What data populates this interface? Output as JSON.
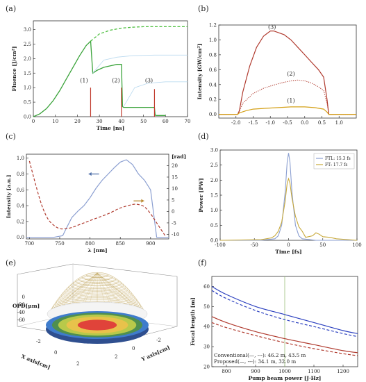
{
  "panels": {
    "a": "(a)",
    "b": "(b)",
    "c": "(c)",
    "d": "(d)",
    "e": "(e)",
    "f": "(f)"
  },
  "chart_data": [
    {
      "id": "a",
      "type": "line",
      "xlabel": "Time [ns]",
      "ylabel": "Fluence [J/cm²]",
      "xlim": [
        0,
        70
      ],
      "ylim": [
        0,
        3.3
      ],
      "xticks": [
        0,
        10,
        20,
        30,
        40,
        50,
        60,
        70
      ],
      "yticks": [
        0.0,
        0.5,
        1.0,
        1.5,
        2.0,
        2.5,
        3.0
      ],
      "ytick_labels": [
        "0.0",
        "0.5",
        "1.0",
        "1.5",
        "2.0",
        "2.5",
        "3.0"
      ],
      "colors": {
        "solid": "#3aa33a",
        "dashed": "#4dbf3f",
        "pulse": "#c0392b"
      },
      "series": [
        {
          "style": "solid",
          "x": [
            0,
            3,
            6,
            9,
            12,
            15,
            18,
            21,
            24,
            26,
            27,
            29,
            32,
            35,
            38,
            40,
            40.5,
            41,
            43,
            46,
            50,
            54,
            55,
            55.3,
            56,
            60
          ],
          "y": [
            0,
            0.1,
            0.28,
            0.55,
            0.9,
            1.3,
            1.7,
            2.1,
            2.45,
            2.6,
            1.5,
            1.6,
            1.7,
            1.75,
            1.8,
            1.8,
            0.35,
            0.32,
            0.32,
            0.32,
            0.32,
            0.32,
            0.32,
            0.05,
            0.04,
            0.04
          ]
        },
        {
          "style": "dashed",
          "x": [
            26,
            30,
            35,
            40,
            45,
            50,
            55,
            60,
            65,
            70
          ],
          "y": [
            2.6,
            2.85,
            2.98,
            3.05,
            3.08,
            3.1,
            3.1,
            3.1,
            3.1,
            3.1
          ]
        },
        {
          "style": "faint",
          "x": [
            27,
            32,
            38,
            45,
            55,
            70
          ],
          "y": [
            1.5,
            1.95,
            2.05,
            2.1,
            2.12,
            2.12
          ]
        },
        {
          "style": "faint",
          "x": [
            41,
            46,
            52,
            60,
            70
          ],
          "y": [
            0.35,
            1.0,
            1.15,
            1.2,
            1.2
          ]
        }
      ],
      "pulses": [
        {
          "x": 26,
          "y": 1.0
        },
        {
          "x": 40,
          "y": 1.0
        },
        {
          "x": 55,
          "y": 0.95
        }
      ],
      "annotations": [
        {
          "text": "(1)",
          "x": 23,
          "y": 1.18
        },
        {
          "text": "(2)",
          "x": 37.5,
          "y": 1.18
        },
        {
          "text": "(3)",
          "x": 52.5,
          "y": 1.18
        }
      ]
    },
    {
      "id": "b",
      "type": "line",
      "xlabel": "",
      "ylabel": "Intensity [GW/cm²]",
      "xlim": [
        -2.5,
        1.5
      ],
      "ylim": [
        -0.05,
        1.2
      ],
      "xticks": [
        -2.0,
        -1.5,
        -1.0,
        -0.5,
        0.0,
        0.5,
        1.0
      ],
      "xtick_labels": [
        "-2.0",
        "-1.5",
        "-1.0",
        "-0.5",
        "0.0",
        "0.5",
        "1.0"
      ],
      "yticks": [
        0.0,
        0.2,
        0.4,
        0.6,
        0.8,
        1.0,
        1.2
      ],
      "ytick_labels": [
        "0.0",
        "0.2",
        "0.4",
        "0.6",
        "0.8",
        "1.0",
        "1.2"
      ],
      "series": [
        {
          "style": "solid",
          "color": "#b03a2e",
          "x": [
            -2.5,
            -1.95,
            -1.9,
            -1.8,
            -1.6,
            -1.4,
            -1.2,
            -1.0,
            -0.9,
            -0.6,
            -0.4,
            -0.2,
            0.0,
            0.2,
            0.4,
            0.55,
            0.65,
            0.7,
            1.5
          ],
          "y": [
            0,
            0,
            0.05,
            0.3,
            0.65,
            0.9,
            1.05,
            1.12,
            1.12,
            1.07,
            1.0,
            0.9,
            0.8,
            0.7,
            0.6,
            0.5,
            0.2,
            0,
            0
          ]
        },
        {
          "style": "dotted",
          "color": "#b03a2e",
          "x": [
            -2.5,
            -1.95,
            -1.9,
            -1.8,
            -1.5,
            -1.2,
            -1.0,
            -0.7,
            -0.4,
            -0.2,
            0.0,
            0.2,
            0.4,
            0.55,
            0.65,
            0.7,
            1.5
          ],
          "y": [
            0,
            0,
            0.04,
            0.15,
            0.28,
            0.35,
            0.38,
            0.42,
            0.45,
            0.46,
            0.45,
            0.42,
            0.37,
            0.32,
            0.15,
            0,
            0
          ]
        },
        {
          "style": "solid",
          "color": "#d4a017",
          "x": [
            -2.5,
            -1.95,
            -1.9,
            -1.7,
            -1.5,
            -1.2,
            -0.8,
            -0.4,
            0.0,
            0.3,
            0.55,
            0.65,
            0.7,
            1.5
          ],
          "y": [
            0,
            0,
            0.02,
            0.05,
            0.07,
            0.08,
            0.09,
            0.1,
            0.1,
            0.09,
            0.07,
            0.03,
            0,
            0
          ]
        }
      ],
      "annotations": [
        {
          "text": "(3)",
          "x": -0.95,
          "y": 1.15
        },
        {
          "text": "(2)",
          "x": -0.4,
          "y": 0.52
        },
        {
          "text": "(1)",
          "x": -0.4,
          "y": 0.16
        }
      ]
    },
    {
      "id": "c",
      "type": "line",
      "xlabel": "λ [nm]",
      "ylabel": "Intensity [a.u.]",
      "y2label": "[rad]",
      "xlim": [
        695,
        930
      ],
      "ylim": [
        -0.02,
        1.05
      ],
      "y2lim": [
        -12,
        25
      ],
      "xticks": [
        700,
        750,
        800,
        850,
        900
      ],
      "yticks": [
        0.0,
        0.2,
        0.4,
        0.6,
        0.8,
        1.0
      ],
      "ytick_labels": [
        "0.0",
        "0.2",
        "0.4",
        "0.6",
        "0.8",
        "1.0"
      ],
      "y2ticks": [
        -10,
        -5,
        0,
        5,
        10,
        15,
        20
      ],
      "series": [
        {
          "style": "solid",
          "color": "#8b9fd1",
          "axis": "y",
          "x": [
            695,
            740,
            755,
            760,
            770,
            780,
            790,
            800,
            810,
            820,
            830,
            840,
            850,
            860,
            870,
            880,
            890,
            900,
            905,
            910,
            930
          ],
          "y": [
            0,
            0,
            0.02,
            0.1,
            0.25,
            0.33,
            0.4,
            0.5,
            0.62,
            0.72,
            0.8,
            0.88,
            0.95,
            0.98,
            0.92,
            0.8,
            0.72,
            0.6,
            0.3,
            0,
            0
          ]
        },
        {
          "style": "dashed",
          "color": "#b03a2e",
          "axis": "y2",
          "x": [
            700,
            710,
            720,
            730,
            740,
            750,
            760,
            770,
            790,
            810,
            830,
            850,
            870,
            880,
            890,
            900,
            910,
            925
          ],
          "y": [
            22,
            12,
            3,
            -3,
            -6,
            -7.5,
            -7.5,
            -7,
            -5,
            -3,
            -1,
            1.5,
            3,
            3,
            2,
            -1,
            -5,
            -11
          ]
        }
      ],
      "arrows": [
        {
          "color": "#4f6fa8",
          "x": 815,
          "y": 0.8,
          "dir": "left"
        },
        {
          "color": "#b8862b",
          "x": 872,
          "y": 0.46,
          "dir": "right"
        }
      ]
    },
    {
      "id": "d",
      "type": "line",
      "xlabel": "Time [fs]",
      "ylabel": "Power [PW]",
      "xlim": [
        -100,
        100
      ],
      "ylim": [
        0,
        3.0
      ],
      "xticks": [
        -100,
        -50,
        0,
        50,
        100
      ],
      "yticks": [
        0.0,
        0.5,
        1.0,
        1.5,
        2.0,
        2.5,
        3.0
      ],
      "ytick_labels": [
        "0.0",
        "0.5",
        "1.0",
        "1.5",
        "2.0",
        "2.5",
        "3.0"
      ],
      "legend": {
        "placement": "top-right",
        "entries": [
          "FTL: 15.3 fs",
          "FT: 17.7 fs"
        ]
      },
      "series": [
        {
          "name": "FTL: 15.3 fs",
          "color": "#8b9fd1",
          "x": [
            -100,
            -40,
            -20,
            -15,
            -10,
            -5,
            -2,
            0,
            2,
            5,
            10,
            15,
            20,
            40,
            100
          ],
          "y": [
            0,
            0,
            0.05,
            0.15,
            0.5,
            1.6,
            2.6,
            2.9,
            2.6,
            1.6,
            0.5,
            0.15,
            0.05,
            0,
            0
          ]
        },
        {
          "name": "FT: 17.7 fs",
          "color": "#c8a93a",
          "x": [
            -100,
            -40,
            -25,
            -20,
            -15,
            -10,
            -5,
            -2,
            0,
            2,
            5,
            10,
            15,
            20,
            25,
            35,
            40,
            45,
            50,
            60,
            70,
            100
          ],
          "y": [
            0,
            0.02,
            0.08,
            0.15,
            0.3,
            0.6,
            1.3,
            1.9,
            2.05,
            1.9,
            1.4,
            0.8,
            0.45,
            0.3,
            0.1,
            0.15,
            0.25,
            0.2,
            0.12,
            0.1,
            0.05,
            0
          ]
        }
      ]
    },
    {
      "id": "e",
      "type": "surface",
      "xlabel": "X axis[cm]",
      "ylabel": "Y axis[cm]",
      "zlabel": "OPD[μm]",
      "zticks": [
        0,
        -20,
        -40,
        -60
      ],
      "xticks": [
        -2,
        0,
        2
      ],
      "yticks": [
        -2,
        0,
        2
      ],
      "colors": [
        "#c9a94f",
        "#3f7ccc",
        "#4f8f4f",
        "#b8c94a",
        "#e8c24b",
        "#e0433a"
      ]
    },
    {
      "id": "f",
      "type": "line",
      "xlabel": "Pump beam power [J·Hz]",
      "ylabel": "Focal length [m]",
      "xlim": [
        750,
        1250
      ],
      "ylim": [
        20,
        65
      ],
      "xticks": [
        800,
        900,
        1000,
        1100,
        1200
      ],
      "yticks": [
        20,
        30,
        40,
        50,
        60
      ],
      "marker_x": 1000,
      "series": [
        {
          "style": "solid",
          "color": "#2a3fbf",
          "x": [
            750,
            800,
            900,
            1000,
            1100,
            1200,
            1250
          ],
          "y": [
            60,
            56,
            50,
            46,
            42,
            38,
            36.5
          ]
        },
        {
          "style": "dashed",
          "color": "#2a3fbf",
          "x": [
            750,
            800,
            900,
            1000,
            1100,
            1200,
            1250
          ],
          "y": [
            58,
            54,
            48,
            43.5,
            40,
            36.5,
            35
          ]
        },
        {
          "style": "solid",
          "color": "#b03a2e",
          "x": [
            750,
            800,
            900,
            1000,
            1100,
            1200,
            1250
          ],
          "y": [
            45,
            42,
            37.5,
            34,
            31,
            28,
            27
          ]
        },
        {
          "style": "dashed",
          "color": "#b03a2e",
          "x": [
            750,
            800,
            900,
            1000,
            1100,
            1200,
            1250
          ],
          "y": [
            42,
            39.5,
            35.5,
            32,
            29,
            26.5,
            25.5
          ]
        }
      ],
      "annotations": [
        "Conventional(—, ---): 46.2 m, 43.5 m",
        "Proposed(—, ---): 34.1 m, 32.0 m"
      ]
    }
  ]
}
